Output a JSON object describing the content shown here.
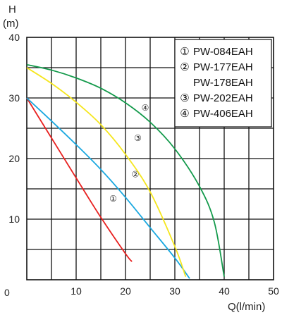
{
  "chart_data": {
    "type": "line",
    "title": "",
    "ylabel": "H",
    "yunit": "(m)",
    "xlabel": "Q(l/min)",
    "origin_label": "0",
    "xlim": [
      0,
      50
    ],
    "ylim": [
      0,
      40
    ],
    "grid": true,
    "x_ticks": [
      "10",
      "20",
      "30",
      "40",
      "50"
    ],
    "y_ticks": [
      "10",
      "20",
      "30",
      "40"
    ],
    "legend_placement": "top-right",
    "legend": [
      {
        "marker": "①",
        "label": "PW-084EAH"
      },
      {
        "marker": "②",
        "label": "PW-177EAH"
      },
      {
        "marker": "",
        "label": "PW-178EAH"
      },
      {
        "marker": "③",
        "label": "PW-202EAH"
      },
      {
        "marker": "④",
        "label": "PW-406EAH"
      }
    ],
    "series": [
      {
        "marker": "①",
        "color": "#e8201f",
        "x": [
          0,
          5,
          10,
          15,
          20,
          21.3
        ],
        "y": [
          30,
          23.4,
          16.8,
          10.3,
          4.3,
          3.0
        ],
        "marker_pos": [
          17.5,
          13.5
        ]
      },
      {
        "marker": "②",
        "color": "#1aa8e0",
        "x": [
          0,
          5,
          10,
          15,
          20,
          25,
          30,
          33
        ],
        "y": [
          30,
          26.2,
          22.3,
          18.2,
          13.6,
          8.6,
          3.6,
          0.2
        ],
        "marker_pos": [
          22,
          17.5
        ]
      },
      {
        "marker": "③",
        "color": "#f5e61d",
        "x": [
          0,
          5,
          10,
          15,
          20,
          25,
          30,
          32.2
        ],
        "y": [
          35,
          32.4,
          29.3,
          25.6,
          20.7,
          14.5,
          5.5,
          0.5
        ],
        "marker_pos": [
          22.5,
          23.5
        ]
      },
      {
        "marker": "④",
        "color": "#139a4b",
        "x": [
          0,
          5,
          10,
          15,
          20,
          25,
          30,
          35,
          38,
          40
        ],
        "y": [
          35.5,
          34.6,
          33.3,
          31.6,
          29.2,
          26.0,
          21.6,
          15.4,
          9.5,
          0.5
        ],
        "marker_pos": [
          24,
          28.5
        ]
      }
    ]
  }
}
